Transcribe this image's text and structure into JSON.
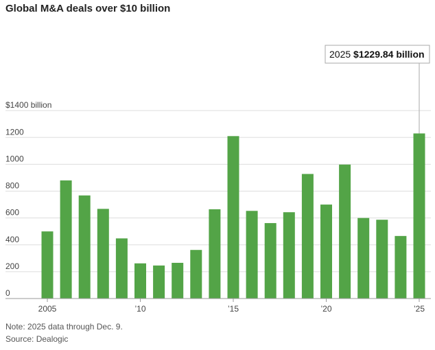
{
  "title": "Global M&A deals over $10 billion",
  "note": "Note: 2025 data through Dec. 9.",
  "source": "Source: Dealogic",
  "colors": {
    "bar": "#53a447",
    "grid": "#dddddd",
    "axis": "#999999",
    "callout_border": "#aaaaaa"
  },
  "chart_data": {
    "type": "bar",
    "title": "Global M&A deals over $10 billion",
    "x": [
      2005,
      2006,
      2007,
      2008,
      2009,
      2010,
      2011,
      2012,
      2013,
      2014,
      2015,
      2016,
      2017,
      2018,
      2019,
      2020,
      2021,
      2022,
      2023,
      2024,
      2025
    ],
    "values": [
      500,
      880,
      768,
      668,
      448,
      262,
      246,
      266,
      362,
      665,
      1210,
      653,
      562,
      643,
      928,
      700,
      998,
      600,
      587,
      466,
      1229.84
    ],
    "ylim": [
      0,
      1400
    ],
    "y_ticks": [
      {
        "value": 1400,
        "label": "$1400 billion"
      },
      {
        "value": 1200,
        "label": "1200"
      },
      {
        "value": 1000,
        "label": "1000"
      },
      {
        "value": 800,
        "label": "800"
      },
      {
        "value": 600,
        "label": "600"
      },
      {
        "value": 400,
        "label": "400"
      },
      {
        "value": 200,
        "label": "200"
      },
      {
        "value": 0,
        "label": "0"
      }
    ],
    "x_ticks": [
      {
        "value": 2005,
        "label": "2005"
      },
      {
        "value": 2010,
        "label": "’10"
      },
      {
        "value": 2015,
        "label": "’15"
      },
      {
        "value": 2020,
        "label": "’20"
      },
      {
        "value": 2025,
        "label": "’25"
      }
    ],
    "annotation": {
      "year": 2025,
      "prefix": "2025 ",
      "value_text": "$1229.84 billion"
    },
    "grid": true
  }
}
